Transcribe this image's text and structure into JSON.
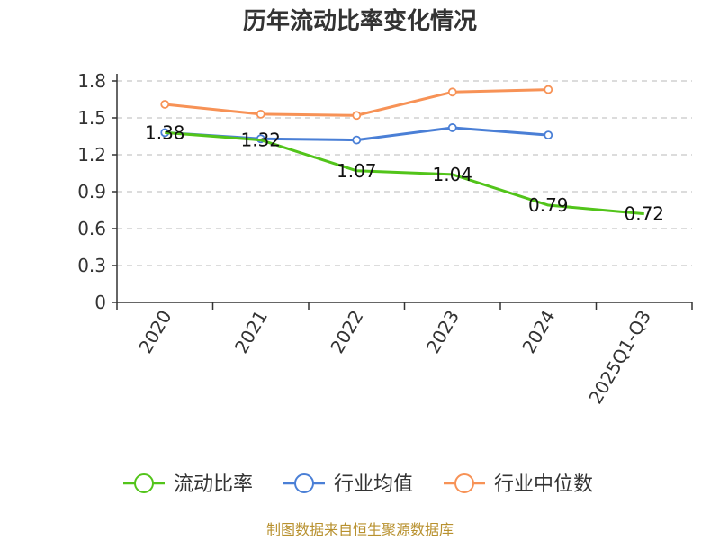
{
  "chart_data": {
    "type": "line",
    "title": "历年流动比率变化情况",
    "categories": [
      "2020",
      "2021",
      "2022",
      "2023",
      "2024",
      "2025Q1-Q3"
    ],
    "series": [
      {
        "name": "流动比率",
        "color": "#52c41a",
        "values": [
          1.38,
          1.32,
          1.07,
          1.04,
          0.79,
          0.72
        ],
        "labels": [
          "1.38",
          "1.32",
          "1.07",
          "1.04",
          "0.79",
          "0.72"
        ],
        "markers": [
          false,
          false,
          false,
          false,
          false,
          false
        ]
      },
      {
        "name": "行业均值",
        "color": "#4a7fd6",
        "values": [
          1.38,
          1.33,
          1.32,
          1.42,
          1.36,
          null
        ],
        "markers": [
          true,
          true,
          true,
          true,
          true,
          false
        ]
      },
      {
        "name": "行业中位数",
        "color": "#f79256",
        "values": [
          1.61,
          1.53,
          1.52,
          1.71,
          1.73,
          null
        ],
        "markers": [
          true,
          true,
          true,
          true,
          true,
          false
        ]
      }
    ],
    "yticks": [
      "0",
      "0.3",
      "0.6",
      "0.9",
      "1.2",
      "1.5",
      "1.8"
    ],
    "ylim": [
      0,
      1.8
    ],
    "grid": true,
    "legend_position": "bottom"
  },
  "footer": {
    "source": "制图数据来自恒生聚源数据库"
  }
}
